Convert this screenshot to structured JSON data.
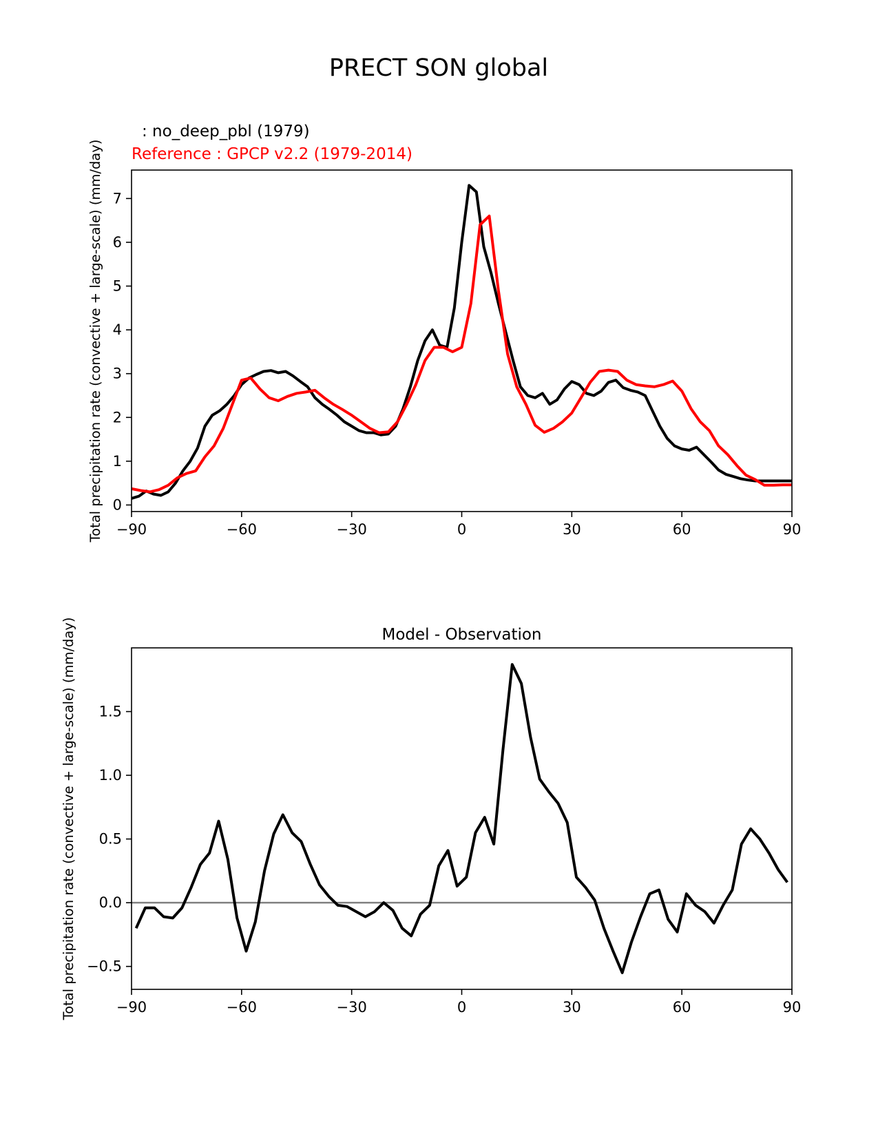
{
  "figure": {
    "title": "PRECT SON global"
  },
  "chart_data": [
    {
      "type": "line",
      "title": "",
      "legend_top": ": no_deep_pbl (1979)",
      "legend_ref": "Reference : GPCP v2.2 (1979-2014)",
      "xlabel": "",
      "ylabel": "Total precipitation rate (convective + large-scale) (mm/day)",
      "xlim": [
        -90,
        90
      ],
      "ylim": [
        -0.15,
        7.65
      ],
      "xticks": [
        -90,
        -60,
        -30,
        0,
        30,
        60,
        90
      ],
      "xtick_labels": [
        "−90",
        "−60",
        "−30",
        "0",
        "30",
        "60",
        "90"
      ],
      "yticks": [
        0,
        1,
        2,
        3,
        4,
        5,
        6,
        7
      ],
      "ytick_labels": [
        "0",
        "1",
        "2",
        "3",
        "4",
        "5",
        "6",
        "7"
      ],
      "series": [
        {
          "name": "no_deep_pbl (1979)",
          "color": "#000000",
          "x": [
            -90,
            -88,
            -86,
            -84,
            -82,
            -80,
            -78,
            -76,
            -74,
            -72,
            -70,
            -68,
            -66,
            -64,
            -62,
            -60,
            -58,
            -56,
            -54,
            -52,
            -50,
            -48,
            -46,
            -44,
            -42,
            -40,
            -38,
            -36,
            -34,
            -32,
            -30,
            -28,
            -26,
            -24,
            -22,
            -20,
            -18,
            -16,
            -14,
            -12,
            -10,
            -8,
            -6,
            -4,
            -2,
            0,
            2,
            4,
            6,
            8,
            10,
            12,
            14,
            16,
            18,
            20,
            22,
            24,
            26,
            28,
            30,
            32,
            34,
            36,
            38,
            40,
            42,
            44,
            46,
            48,
            50,
            52,
            54,
            56,
            58,
            60,
            62,
            64,
            66,
            68,
            70,
            72,
            74,
            76,
            78,
            80,
            82,
            84,
            86,
            88,
            90
          ],
          "values": [
            0.15,
            0.2,
            0.32,
            0.25,
            0.22,
            0.3,
            0.5,
            0.78,
            1.0,
            1.3,
            1.8,
            2.05,
            2.15,
            2.3,
            2.5,
            2.75,
            2.9,
            2.98,
            3.05,
            3.07,
            3.02,
            3.05,
            2.95,
            2.82,
            2.7,
            2.45,
            2.3,
            2.18,
            2.05,
            1.9,
            1.8,
            1.7,
            1.65,
            1.65,
            1.6,
            1.62,
            1.8,
            2.2,
            2.7,
            3.3,
            3.75,
            4.0,
            3.65,
            3.6,
            4.5,
            6.0,
            7.3,
            7.15,
            5.9,
            5.3,
            4.6,
            3.95,
            3.3,
            2.7,
            2.5,
            2.45,
            2.55,
            2.3,
            2.4,
            2.65,
            2.82,
            2.75,
            2.55,
            2.5,
            2.6,
            2.8,
            2.85,
            2.68,
            2.62,
            2.58,
            2.5,
            2.15,
            1.8,
            1.52,
            1.35,
            1.28,
            1.25,
            1.32,
            1.15,
            0.98,
            0.8,
            0.7,
            0.65,
            0.6,
            0.57,
            0.55,
            0.55,
            0.55,
            0.55,
            0.55,
            0.55
          ]
        },
        {
          "name": "GPCP v2.2 (1979-2014)",
          "color": "#ff0000",
          "x": [
            -90,
            -87.5,
            -85,
            -82.5,
            -80,
            -77.5,
            -75,
            -72.5,
            -70,
            -67.5,
            -65,
            -62.5,
            -60,
            -57.5,
            -55,
            -52.5,
            -50,
            -47.5,
            -45,
            -42.5,
            -40,
            -37.5,
            -35,
            -32.5,
            -30,
            -27.5,
            -25,
            -22.5,
            -20,
            -17.5,
            -15,
            -12.5,
            -10,
            -7.5,
            -5,
            -2.5,
            0,
            2.5,
            5,
            7.5,
            10,
            12.5,
            15,
            17.5,
            20,
            22.5,
            25,
            27.5,
            30,
            32.5,
            35,
            37.5,
            40,
            42.5,
            45,
            47.5,
            50,
            52.5,
            55,
            57.5,
            60,
            62.5,
            65,
            67.5,
            70,
            72.5,
            75,
            77.5,
            80,
            82.5,
            85,
            87.5,
            90
          ],
          "values": [
            0.37,
            0.33,
            0.3,
            0.35,
            0.45,
            0.62,
            0.72,
            0.78,
            1.1,
            1.35,
            1.75,
            2.3,
            2.85,
            2.9,
            2.65,
            2.45,
            2.38,
            2.48,
            2.55,
            2.58,
            2.62,
            2.45,
            2.3,
            2.18,
            2.05,
            1.9,
            1.75,
            1.65,
            1.67,
            1.9,
            2.3,
            2.75,
            3.3,
            3.6,
            3.6,
            3.5,
            3.6,
            4.6,
            6.4,
            6.6,
            4.9,
            3.45,
            2.7,
            2.3,
            1.82,
            1.66,
            1.75,
            1.9,
            2.1,
            2.45,
            2.8,
            3.05,
            3.08,
            3.05,
            2.85,
            2.75,
            2.72,
            2.7,
            2.75,
            2.83,
            2.6,
            2.2,
            1.9,
            1.7,
            1.35,
            1.15,
            0.9,
            0.68,
            0.58,
            0.45,
            0.45,
            0.46,
            0.46
          ]
        }
      ]
    },
    {
      "type": "line",
      "title": "Model - Observation",
      "xlabel": "",
      "ylabel": "Total precipitation rate (convective + large-scale) (mm/day)",
      "xlim": [
        -90,
        90
      ],
      "ylim": [
        -0.68,
        2.0
      ],
      "xticks": [
        -90,
        -60,
        -30,
        0,
        30,
        60,
        90
      ],
      "xtick_labels": [
        "−90",
        "−60",
        "−30",
        "0",
        "30",
        "60",
        "90"
      ],
      "yticks": [
        -0.5,
        0.0,
        0.5,
        1.0,
        1.5
      ],
      "ytick_labels": [
        "−0.5",
        "0.0",
        "0.5",
        "1.0",
        "1.5"
      ],
      "zero_line_color": "#808080",
      "series": [
        {
          "name": "Model - Observation",
          "color": "#000000",
          "x": [
            -88.75,
            -86.25,
            -83.75,
            -81.25,
            -78.75,
            -76.25,
            -73.75,
            -71.25,
            -68.75,
            -66.25,
            -63.75,
            -61.25,
            -58.75,
            -56.25,
            -53.75,
            -51.25,
            -48.75,
            -46.25,
            -43.75,
            -41.25,
            -38.75,
            -36.25,
            -33.75,
            -31.25,
            -28.75,
            -26.25,
            -23.75,
            -21.25,
            -18.75,
            -16.25,
            -13.75,
            -11.25,
            -8.75,
            -6.25,
            -3.75,
            -1.25,
            1.25,
            3.75,
            6.25,
            8.75,
            11.25,
            13.75,
            16.25,
            18.75,
            21.25,
            23.75,
            26.25,
            28.75,
            31.25,
            33.75,
            36.25,
            38.75,
            41.25,
            43.75,
            46.25,
            48.75,
            51.25,
            53.75,
            56.25,
            58.75,
            61.25,
            63.75,
            66.25,
            68.75,
            71.25,
            73.75,
            76.25,
            78.75,
            81.25,
            83.75,
            86.25,
            88.75
          ],
          "values": [
            -0.2,
            -0.04,
            -0.04,
            -0.11,
            -0.12,
            -0.04,
            0.12,
            0.3,
            0.39,
            0.64,
            0.34,
            -0.12,
            -0.38,
            -0.15,
            0.25,
            0.54,
            0.69,
            0.55,
            0.48,
            0.3,
            0.14,
            0.05,
            -0.02,
            -0.03,
            -0.07,
            -0.11,
            -0.07,
            0.0,
            -0.06,
            -0.2,
            -0.26,
            -0.09,
            -0.02,
            0.29,
            0.41,
            0.13,
            0.2,
            0.55,
            0.67,
            0.46,
            1.2,
            1.87,
            1.72,
            1.3,
            0.97,
            0.87,
            0.78,
            0.63,
            0.2,
            0.12,
            0.02,
            -0.2,
            -0.38,
            -0.55,
            -0.31,
            -0.11,
            0.07,
            0.1,
            -0.13,
            -0.23,
            0.07,
            -0.02,
            -0.07,
            -0.16,
            -0.02,
            0.1,
            0.46,
            0.58,
            0.5,
            0.39,
            0.26,
            0.16
          ]
        }
      ]
    }
  ]
}
